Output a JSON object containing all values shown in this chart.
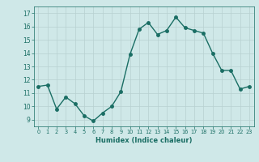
{
  "x": [
    0,
    1,
    2,
    3,
    4,
    5,
    6,
    7,
    8,
    9,
    10,
    11,
    12,
    13,
    14,
    15,
    16,
    17,
    18,
    19,
    20,
    21,
    22,
    23
  ],
  "y": [
    11.5,
    11.6,
    9.8,
    10.7,
    10.2,
    9.3,
    8.9,
    9.5,
    10.0,
    11.1,
    13.9,
    15.8,
    16.3,
    15.4,
    15.7,
    16.7,
    15.9,
    15.7,
    15.5,
    14.0,
    12.7,
    12.7,
    11.3,
    11.5
  ],
  "xlim": [
    -0.5,
    23.5
  ],
  "ylim": [
    8.5,
    17.5
  ],
  "yticks": [
    9,
    10,
    11,
    12,
    13,
    14,
    15,
    16,
    17
  ],
  "xticks": [
    0,
    1,
    2,
    3,
    4,
    5,
    6,
    7,
    8,
    9,
    10,
    11,
    12,
    13,
    14,
    15,
    16,
    17,
    18,
    19,
    20,
    21,
    22,
    23
  ],
  "xlabel": "Humidex (Indice chaleur)",
  "bg_color": "#cfe8e8",
  "plot_color": "#1a6e64",
  "grid_color": "#b8d0d0",
  "line_width": 1.0,
  "marker_size": 2.5
}
